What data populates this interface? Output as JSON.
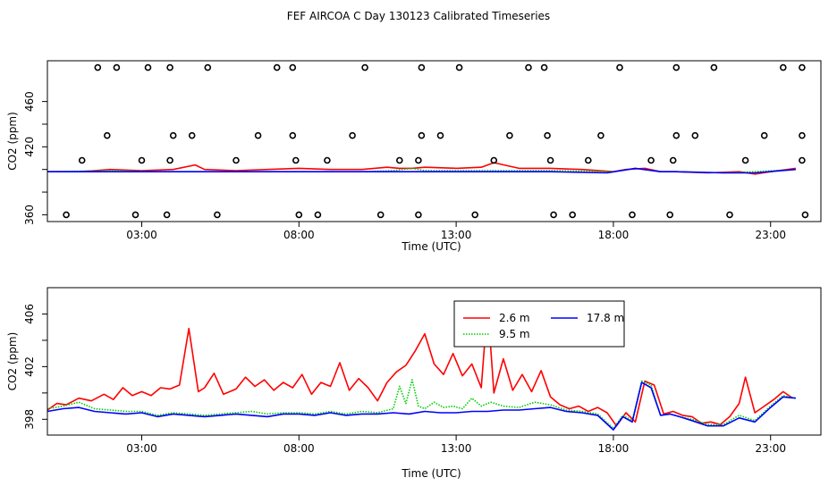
{
  "title": "FEF AIRCOA C  Day 130123  Calibrated Timeseries",
  "chart_data": [
    {
      "type": "line",
      "panel": "top",
      "xlabel": "Time (UTC)",
      "ylabel": "CO2 (ppm)",
      "xlim": [
        0,
        24.6
      ],
      "ylim": [
        354,
        496
      ],
      "x_ticks": [
        3,
        8,
        13,
        18,
        23
      ],
      "x_tick_labels": [
        "03:00",
        "08:00",
        "13:00",
        "18:00",
        "23:00"
      ],
      "y_ticks": [
        360,
        380,
        400,
        420,
        440,
        460
      ],
      "y_tick_labels": [
        "360",
        "",
        "",
        "420",
        "",
        "460"
      ],
      "series": [
        {
          "name": "2.6 m",
          "color": "#ff0000",
          "style": "solid",
          "x": [
            0,
            1,
            1.5,
            2,
            3,
            4,
            4.7,
            5,
            6,
            7,
            8,
            9,
            10,
            10.8,
            11.2,
            11.6,
            12,
            13,
            13.8,
            14.2,
            15,
            16,
            17,
            18,
            18.4,
            19,
            19.5,
            20,
            21,
            22,
            22.5,
            23,
            23.8
          ],
          "y": [
            398,
            398,
            399,
            400,
            399,
            400,
            404,
            400,
            399,
            400,
            401,
            400,
            400,
            402,
            401,
            401,
            402,
            401,
            402,
            406,
            401,
            401,
            400,
            398,
            400,
            401,
            398,
            398,
            397,
            398,
            396,
            398,
            401
          ]
        },
        {
          "name": "9.5 m",
          "color": "#00cc00",
          "style": "dotted",
          "x": [
            0,
            2,
            4,
            6,
            8,
            10,
            11,
            11.6,
            12,
            14,
            16,
            18,
            18.7,
            19.5,
            20,
            21.5,
            22.5,
            23.8
          ],
          "y": [
            398,
            399,
            398,
            398,
            398,
            398,
            399,
            401,
            399,
            399,
            399,
            398,
            401,
            398,
            398,
            397,
            398,
            400
          ]
        },
        {
          "name": "17.8 m",
          "color": "#0000ff",
          "style": "solid",
          "x": [
            0,
            2,
            4,
            6,
            8,
            10,
            12,
            14,
            16,
            17.8,
            18.7,
            19.5,
            20,
            21.5,
            22.5,
            23.8
          ],
          "y": [
            398,
            398,
            398,
            398,
            398,
            398,
            398,
            398,
            398,
            397,
            401,
            398,
            398,
            397,
            397,
            400
          ]
        }
      ],
      "points": {
        "name": "tank cal",
        "x": [
          1.6,
          2.2,
          3.2,
          3.9,
          5.1,
          7.3,
          7.8,
          10.1,
          11.9,
          13.1,
          15.3,
          15.8,
          18.2,
          20.0,
          21.2,
          23.4,
          24.0,
          1.9,
          4.0,
          4.6,
          6.7,
          7.8,
          9.7,
          11.9,
          12.5,
          14.7,
          15.9,
          17.6,
          20.0,
          20.6,
          22.8,
          24.0,
          1.1,
          3.0,
          3.9,
          6.0,
          7.9,
          8.9,
          11.2,
          11.8,
          14.2,
          16.0,
          17.2,
          19.2,
          19.9,
          22.2,
          24.0,
          0.6,
          2.8,
          3.8,
          5.4,
          8.0,
          8.6,
          10.6,
          11.8,
          13.6,
          16.1,
          16.7,
          18.6,
          19.8,
          21.7,
          24.1
        ],
        "y": [
          490,
          490,
          490,
          490,
          490,
          490,
          490,
          490,
          490,
          490,
          490,
          490,
          490,
          490,
          490,
          490,
          490,
          430,
          430,
          430,
          430,
          430,
          430,
          430,
          430,
          430,
          430,
          430,
          430,
          430,
          430,
          430,
          408,
          408,
          408,
          408,
          408,
          408,
          408,
          408,
          408,
          408,
          408,
          408,
          408,
          408,
          408,
          360,
          360,
          360,
          360,
          360,
          360,
          360,
          360,
          360,
          360,
          360,
          360,
          360,
          360,
          360
        ]
      }
    },
    {
      "type": "line",
      "panel": "bottom",
      "xlabel": "Time (UTC)",
      "ylabel": "CO2 (ppm)",
      "xlim": [
        0,
        24.6
      ],
      "ylim": [
        396.8,
        408
      ],
      "x_ticks": [
        3,
        8,
        13,
        18,
        23
      ],
      "x_tick_labels": [
        "03:00",
        "08:00",
        "13:00",
        "18:00",
        "23:00"
      ],
      "y_ticks": [
        398,
        400,
        402,
        404,
        406
      ],
      "y_tick_labels": [
        "398",
        "",
        "402",
        "",
        "406"
      ],
      "legend": {
        "position": "top-center",
        "entries": [
          "2.6 m",
          "9.5 m",
          "17.8 m"
        ]
      },
      "series": [
        {
          "name": "2.6 m",
          "color": "#ff0000",
          "style": "solid",
          "x": [
            0,
            0.3,
            0.6,
            1.0,
            1.4,
            1.8,
            2.1,
            2.4,
            2.7,
            3.0,
            3.3,
            3.6,
            3.9,
            4.2,
            4.5,
            4.8,
            5.0,
            5.3,
            5.6,
            6.0,
            6.3,
            6.6,
            6.9,
            7.2,
            7.5,
            7.8,
            8.1,
            8.4,
            8.7,
            9.0,
            9.3,
            9.6,
            9.9,
            10.2,
            10.5,
            10.8,
            11.1,
            11.4,
            11.7,
            12.0,
            12.3,
            12.6,
            12.9,
            13.2,
            13.5,
            13.8,
            14.0,
            14.2,
            14.5,
            14.8,
            15.1,
            15.4,
            15.7,
            16.0,
            16.3,
            16.6,
            16.9,
            17.2,
            17.5,
            17.8,
            18.1,
            18.4,
            18.7,
            19.0,
            19.3,
            19.6,
            19.9,
            20.2,
            20.5,
            20.8,
            21.1,
            21.4,
            21.7,
            22.0,
            22.2,
            22.5,
            22.8,
            23.1,
            23.4,
            23.7
          ],
          "y": [
            398.7,
            399.2,
            399.1,
            399.6,
            399.4,
            399.9,
            399.5,
            400.4,
            399.8,
            400.1,
            399.8,
            400.4,
            400.3,
            400.6,
            404.9,
            400.1,
            400.4,
            401.5,
            399.9,
            400.3,
            401.2,
            400.5,
            401.0,
            400.2,
            400.8,
            400.4,
            401.4,
            399.9,
            400.8,
            400.5,
            402.3,
            400.2,
            401.1,
            400.4,
            399.4,
            400.8,
            401.6,
            402.1,
            403.2,
            404.5,
            402.2,
            401.4,
            403.0,
            401.3,
            402.2,
            400.4,
            406.8,
            400.0,
            402.6,
            400.2,
            401.4,
            400.1,
            401.7,
            399.7,
            399.1,
            398.8,
            399.0,
            398.6,
            398.9,
            398.5,
            397.5,
            398.5,
            397.8,
            400.9,
            400.6,
            398.4,
            398.6,
            398.3,
            398.2,
            397.7,
            397.8,
            397.6,
            398.2,
            399.2,
            401.2,
            398.5,
            399.0,
            399.5,
            400.1,
            399.6
          ]
        },
        {
          "name": "9.5 m",
          "color": "#00cc00",
          "style": "dotted",
          "x": [
            0,
            0.5,
            1.0,
            1.5,
            2.0,
            2.5,
            3.0,
            3.5,
            4.0,
            4.5,
            5.0,
            5.5,
            6.0,
            6.5,
            7.0,
            7.5,
            8.0,
            8.5,
            9.0,
            9.5,
            10.0,
            10.5,
            11.0,
            11.2,
            11.4,
            11.6,
            11.8,
            12.0,
            12.3,
            12.6,
            12.9,
            13.2,
            13.5,
            13.8,
            14.1,
            14.5,
            15.0,
            15.5,
            16.0,
            16.5,
            17.0,
            17.5,
            18.0,
            18.3,
            18.6,
            18.9,
            19.2,
            19.5,
            19.8,
            20.1,
            20.5,
            21.0,
            21.5,
            22.0,
            22.5,
            23.0,
            23.4,
            23.8
          ],
          "y": [
            398.8,
            399.0,
            399.3,
            398.8,
            398.7,
            398.6,
            398.6,
            398.3,
            398.5,
            398.4,
            398.3,
            398.4,
            398.5,
            398.6,
            398.4,
            398.5,
            398.5,
            398.4,
            398.6,
            398.4,
            398.6,
            398.5,
            398.8,
            400.5,
            399.2,
            401.0,
            399.0,
            398.8,
            399.3,
            398.9,
            399.0,
            398.8,
            399.6,
            399.0,
            399.3,
            399.0,
            398.9,
            399.3,
            399.1,
            398.7,
            398.6,
            398.4,
            397.3,
            398.3,
            397.9,
            400.9,
            400.6,
            398.3,
            398.4,
            398.2,
            398.0,
            397.6,
            397.6,
            398.3,
            397.9,
            399.0,
            399.8,
            399.6
          ]
        },
        {
          "name": "17.8 m",
          "color": "#0000ff",
          "style": "solid",
          "x": [
            0,
            0.5,
            1.0,
            1.5,
            2.0,
            2.5,
            3.0,
            3.5,
            4.0,
            4.5,
            5.0,
            5.5,
            6.0,
            6.5,
            7.0,
            7.5,
            8.0,
            8.5,
            9.0,
            9.5,
            10.0,
            10.5,
            11.0,
            11.5,
            12.0,
            12.5,
            13.0,
            13.5,
            14.0,
            14.5,
            15.0,
            15.5,
            16.0,
            16.5,
            17.0,
            17.5,
            18.0,
            18.3,
            18.6,
            18.9,
            19.2,
            19.5,
            19.8,
            20.1,
            20.5,
            21.0,
            21.5,
            22.0,
            22.5,
            23.0,
            23.4,
            23.8
          ],
          "y": [
            398.6,
            398.8,
            398.9,
            398.6,
            398.5,
            398.4,
            398.5,
            398.2,
            398.4,
            398.3,
            398.2,
            398.3,
            398.4,
            398.3,
            398.2,
            398.4,
            398.4,
            398.3,
            398.5,
            398.3,
            398.4,
            398.4,
            398.5,
            398.4,
            398.6,
            398.5,
            398.5,
            398.6,
            398.6,
            398.7,
            398.7,
            398.8,
            398.9,
            398.6,
            398.5,
            398.3,
            397.2,
            398.2,
            397.8,
            400.8,
            400.4,
            398.3,
            398.4,
            398.2,
            397.9,
            397.5,
            397.5,
            398.1,
            397.8,
            398.9,
            399.7,
            399.6
          ]
        }
      ]
    }
  ]
}
